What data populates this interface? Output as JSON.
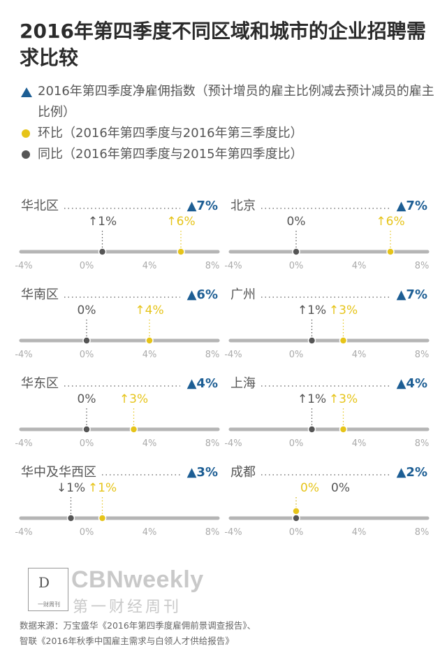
{
  "title": "2016年第四季度不同区域和城市的企业招聘需求比较",
  "legend": {
    "triangle": "2016年第四季度净雇佣指数（预计增员的雇主比例减去预计减员的雇主比例）",
    "yellow": "环比（2016年第四季度与2016年第三季度比）",
    "gray": "同比（2016年第四季度与2015年第四季度比）"
  },
  "colors": {
    "triangle": "#1d5e94",
    "yellow": "#e6c419",
    "gray": "#555555",
    "axis": "#b5b5b5"
  },
  "chart_data": [
    {
      "type": "scatter",
      "region": "华北区",
      "index": "▲7%",
      "yoy": 1,
      "yoy_label": "↑1%",
      "qoq": 6,
      "qoq_label": "↑6%"
    },
    {
      "type": "scatter",
      "region": "北京",
      "index": "▲7%",
      "yoy": 0,
      "yoy_label": "0%",
      "qoq": 6,
      "qoq_label": "↑6%"
    },
    {
      "type": "scatter",
      "region": "华南区",
      "index": "▲6%",
      "yoy": 0,
      "yoy_label": "0%",
      "qoq": 4,
      "qoq_label": "↑4%"
    },
    {
      "type": "scatter",
      "region": "广州",
      "index": "▲7%",
      "yoy": 1,
      "yoy_label": "↑1%",
      "qoq": 3,
      "qoq_label": "↑3%"
    },
    {
      "type": "scatter",
      "region": "华东区",
      "index": "▲4%",
      "yoy": 0,
      "yoy_label": "0%",
      "qoq": 3,
      "qoq_label": "↑3%"
    },
    {
      "type": "scatter",
      "region": "上海",
      "index": "▲4%",
      "yoy": 1,
      "yoy_label": "↑1%",
      "qoq": 3,
      "qoq_label": "↑3%"
    },
    {
      "type": "scatter",
      "region": "华中及华西区",
      "index": "▲3%",
      "yoy": -1,
      "yoy_label": "↓1%",
      "qoq": 1,
      "qoq_label": "↑1%"
    },
    {
      "type": "scatter",
      "region": "成都",
      "index": "▲2%",
      "yoy": 0,
      "yoy_label": "0%",
      "qoq": 0,
      "qoq_label": "0%"
    }
  ],
  "axis": {
    "min": -4,
    "max": 8,
    "ticks": [
      -4,
      0,
      4,
      8
    ],
    "tick_labels": [
      "-4%",
      "0%",
      "4%",
      "8%"
    ]
  },
  "branding": {
    "logo_letters": "D",
    "logo_caption": "一财周刊",
    "name": "CBNweekly",
    "name_cn": "第一财经周刊"
  },
  "source": {
    "line1": "数据来源：万宝盛华《2016年第四季度雇佣前景调查报告》、",
    "line2": "智联《2016年秋季中国雇主需求与白领人才供给报告》"
  }
}
